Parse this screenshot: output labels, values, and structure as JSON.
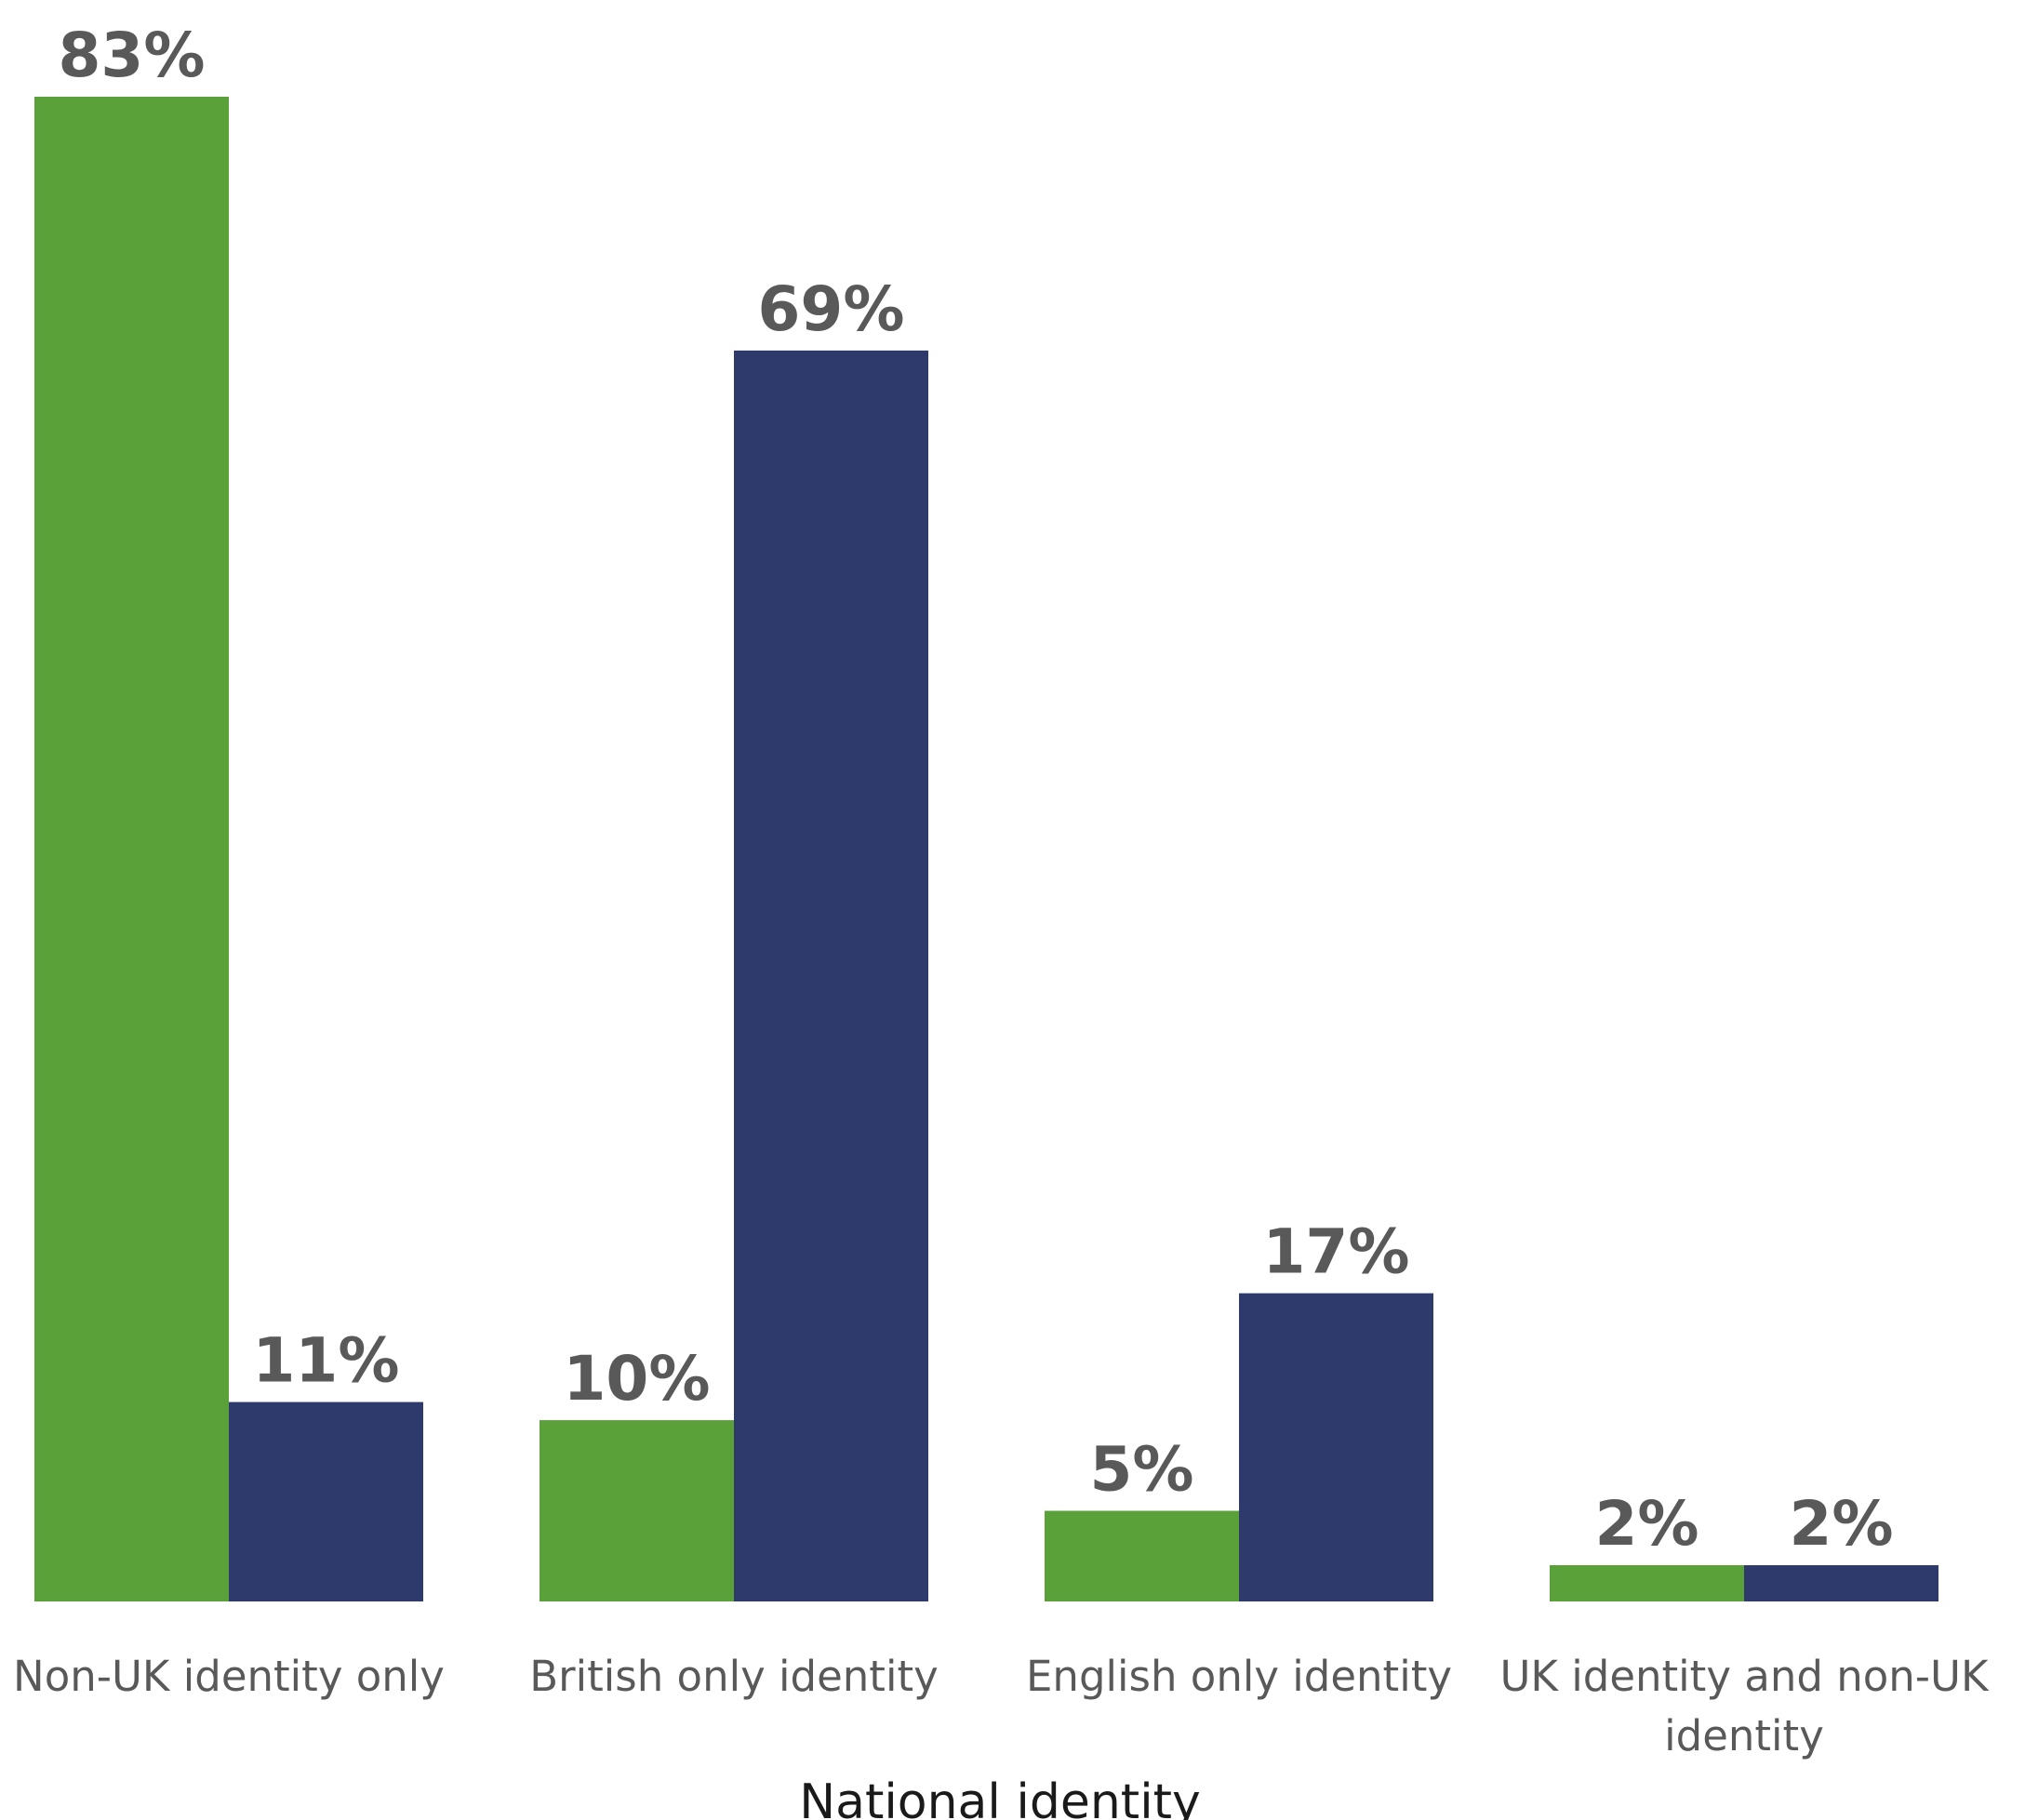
{
  "chart_data": {
    "type": "bar",
    "categories": [
      [
        "Non-UK identity only"
      ],
      [
        "British only identity"
      ],
      [
        "English only identity"
      ],
      [
        "UK identity and non-UK",
        "identity"
      ]
    ],
    "series": [
      {
        "color": "#5aa13a",
        "values": [
          83,
          10,
          5,
          2
        ],
        "labels": [
          "83%",
          "10%",
          "5%",
          "2%"
        ]
      },
      {
        "color": "#2e3a6b",
        "values": [
          11,
          69,
          17,
          2
        ],
        "labels": [
          "11%",
          "69%",
          "17%",
          "2%"
        ]
      }
    ],
    "xlabel": "National identity",
    "ylabel": "",
    "ylim": [
      0,
      83
    ],
    "grid": false,
    "legend": "none"
  }
}
